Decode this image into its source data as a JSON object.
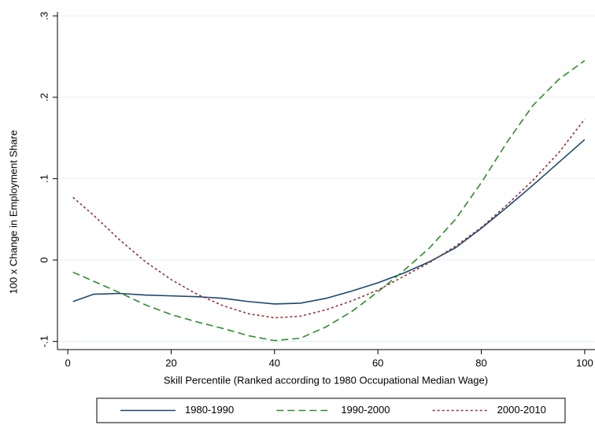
{
  "chart_data": {
    "type": "line",
    "x_label": "Skill Percentile (Ranked according to 1980 Occupational Median Wage)",
    "y_label": "100 x Change in Employment Share",
    "x": [
      1,
      5,
      10,
      15,
      20,
      25,
      30,
      35,
      40,
      45,
      50,
      55,
      60,
      65,
      70,
      75,
      80,
      85,
      90,
      95,
      100
    ],
    "series": [
      {
        "name": "1980-1990",
        "color": "#1a476f",
        "dash": "solid",
        "values": [
          -0.051,
          -0.042,
          -0.041,
          -0.043,
          -0.044,
          -0.045,
          -0.047,
          -0.051,
          -0.054,
          -0.053,
          -0.047,
          -0.038,
          -0.028,
          -0.016,
          -0.002,
          0.015,
          0.039,
          0.065,
          0.092,
          0.12,
          0.148
        ]
      },
      {
        "name": "1990-2000",
        "color": "#2e8b2e",
        "dash": "dashed",
        "values": [
          -0.015,
          -0.026,
          -0.04,
          -0.055,
          -0.067,
          -0.076,
          -0.084,
          -0.093,
          -0.099,
          -0.096,
          -0.082,
          -0.063,
          -0.039,
          -0.013,
          0.015,
          0.05,
          0.095,
          0.145,
          0.19,
          0.222,
          0.245
        ]
      },
      {
        "name": "2000-2010",
        "color": "#90353b",
        "dash": "dotted",
        "values": [
          0.077,
          0.055,
          0.025,
          -0.002,
          -0.024,
          -0.042,
          -0.056,
          -0.066,
          -0.071,
          -0.069,
          -0.061,
          -0.05,
          -0.037,
          -0.02,
          -0.003,
          0.017,
          0.04,
          0.068,
          0.098,
          0.132,
          0.173
        ]
      }
    ],
    "xlim": [
      -2,
      102
    ],
    "xticks": [
      0,
      20,
      40,
      60,
      80,
      100
    ],
    "ylim": [
      -0.11,
      0.305
    ],
    "yticks": [
      {
        "value": -0.1,
        "label": "-.1"
      },
      {
        "value": 0,
        "label": "0"
      },
      {
        "value": 0.1,
        "label": ".1"
      },
      {
        "value": 0.2,
        "label": ".2"
      },
      {
        "value": 0.3,
        "label": ".3"
      }
    ],
    "grid": true,
    "legend": "bottom"
  }
}
